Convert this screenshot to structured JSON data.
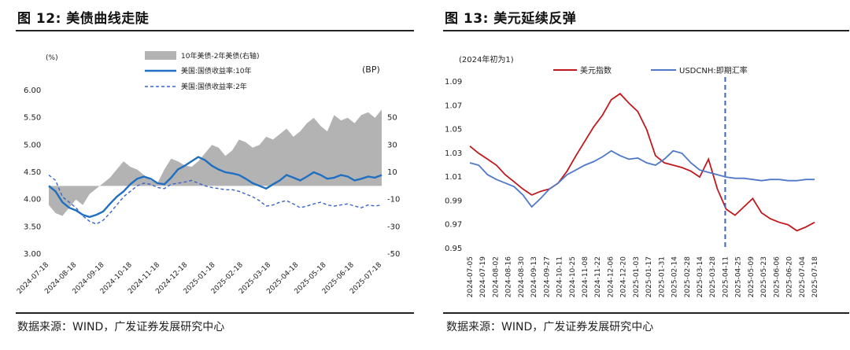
{
  "charts": [
    {
      "title": "图 12:  美债曲线走陡",
      "source": "数据来源：WIND，广发证券发展研究中心",
      "chart_data": {
        "type": "line",
        "left_unit": "(%)",
        "right_unit": "(BP)",
        "y_left_ticks": [
          "6.00",
          "5.50",
          "5.00",
          "4.50",
          "4.00",
          "3.50",
          "3.00"
        ],
        "y_left_range": [
          3.0,
          6.0
        ],
        "y_right_ticks": [
          "50",
          "30",
          "10",
          "-10",
          "-30",
          "-50"
        ],
        "y_right_range": [
          -50,
          70
        ],
        "x_labels": [
          "2024-07-18",
          "2024-08-18",
          "2024-09-18",
          "2024-10-18",
          "2024-11-18",
          "2024-12-18",
          "2025-01-18",
          "2025-02-18",
          "2025-03-18",
          "2025-04-18",
          "2025-05-18",
          "2025-06-18",
          "2025-07-18"
        ],
        "series": [
          {
            "name": "10年美债-2年美债(右轴)",
            "kind": "area",
            "axis": "right",
            "color": "#b3b3b3",
            "values": [
              -14,
              -20,
              -22,
              -16,
              -10,
              -14,
              -6,
              -2,
              2,
              6,
              12,
              18,
              14,
              12,
              8,
              4,
              2,
              12,
              20,
              18,
              15,
              14,
              18,
              24,
              30,
              28,
              22,
              26,
              34,
              32,
              28,
              30,
              36,
              34,
              38,
              42,
              36,
              40,
              46,
              50,
              44,
              40,
              52,
              48,
              50,
              46,
              52,
              54,
              50,
              56
            ]
          },
          {
            "name": "美国:国债收益率:10年",
            "kind": "line",
            "axis": "left",
            "color": "#1f6fc2",
            "values": [
              4.25,
              4.15,
              3.95,
              3.85,
              3.8,
              3.72,
              3.68,
              3.72,
              3.78,
              3.92,
              4.05,
              4.15,
              4.28,
              4.38,
              4.42,
              4.38,
              4.3,
              4.28,
              4.4,
              4.55,
              4.62,
              4.7,
              4.78,
              4.72,
              4.62,
              4.55,
              4.5,
              4.48,
              4.45,
              4.38,
              4.3,
              4.25,
              4.2,
              4.28,
              4.35,
              4.45,
              4.4,
              4.35,
              4.42,
              4.5,
              4.45,
              4.38,
              4.4,
              4.45,
              4.42,
              4.35,
              4.38,
              4.42,
              4.4,
              4.45
            ]
          },
          {
            "name": "美国:国债收益率:2年",
            "kind": "line",
            "axis": "left",
            "color": "#3a63c9",
            "dashed": true,
            "values": [
              4.45,
              4.35,
              4.05,
              3.95,
              3.85,
              3.7,
              3.6,
              3.55,
              3.62,
              3.75,
              3.9,
              4.05,
              4.15,
              4.25,
              4.3,
              4.28,
              4.22,
              4.2,
              4.28,
              4.3,
              4.32,
              4.35,
              4.3,
              4.25,
              4.22,
              4.2,
              4.18,
              4.18,
              4.15,
              4.1,
              4.05,
              3.98,
              3.88,
              3.9,
              3.95,
              3.98,
              3.92,
              3.85,
              3.88,
              3.92,
              3.95,
              3.9,
              3.88,
              3.9,
              3.92,
              3.88,
              3.85,
              3.9,
              3.88,
              3.9
            ]
          }
        ]
      }
    },
    {
      "title": "图 13:  美元延续反弹",
      "source": "数据来源：WIND，广发证券发展研究中心",
      "chart_data": {
        "type": "line",
        "left_unit": "(2024年初为1)",
        "y_ticks": [
          "1.09",
          "1.07",
          "1.05",
          "1.03",
          "1.01",
          "0.99",
          "0.97",
          "0.95"
        ],
        "y_range": [
          0.95,
          1.09
        ],
        "x_labels": [
          "2024-07-05",
          "2024-07-19",
          "2024-08-02",
          "2024-08-16",
          "2024-08-30",
          "2024-09-13",
          "2024-09-27",
          "2024-10-11",
          "2024-10-25",
          "2024-11-08",
          "2024-11-22",
          "2024-12-06",
          "2024-12-20",
          "2025-01-03",
          "2025-01-17",
          "2025-01-31",
          "2025-02-14",
          "2025-02-28",
          "2025-03-14",
          "2025-03-28",
          "2025-04-11",
          "2025-04-25",
          "2025-05-09",
          "2025-05-23",
          "2025-06-06",
          "2025-06-20",
          "2025-07-04",
          "2025-07-18"
        ],
        "marker_label": "2025-04-11",
        "series": [
          {
            "name": "美元指数",
            "color": "#c0191d",
            "values": [
              1.036,
              1.03,
              1.025,
              1.02,
              1.012,
              1.006,
              1.0,
              0.995,
              0.998,
              1.0,
              1.005,
              1.015,
              1.028,
              1.04,
              1.052,
              1.062,
              1.075,
              1.08,
              1.072,
              1.065,
              1.05,
              1.028,
              1.022,
              1.02,
              1.018,
              1.015,
              1.01,
              1.025,
              1.0,
              0.983,
              0.978,
              0.985,
              0.992,
              0.98,
              0.975,
              0.972,
              0.97,
              0.965,
              0.968,
              0.972
            ]
          },
          {
            "name": "USDCNH:即期汇率",
            "color": "#4f78c8",
            "values": [
              1.022,
              1.02,
              1.012,
              1.008,
              1.005,
              1.002,
              0.995,
              0.985,
              0.992,
              1.0,
              1.005,
              1.012,
              1.016,
              1.02,
              1.023,
              1.027,
              1.032,
              1.028,
              1.025,
              1.026,
              1.022,
              1.02,
              1.025,
              1.032,
              1.03,
              1.022,
              1.016,
              1.014,
              1.012,
              1.01,
              1.009,
              1.009,
              1.008,
              1.007,
              1.008,
              1.008,
              1.007,
              1.007,
              1.008,
              1.008
            ]
          }
        ]
      }
    }
  ]
}
